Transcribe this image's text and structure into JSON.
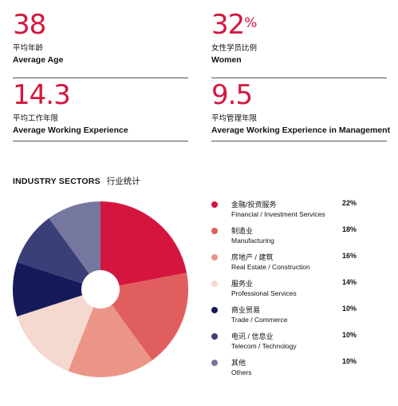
{
  "stats": [
    {
      "value": "38",
      "suffix": "",
      "zh": "平均年龄",
      "en": "Average Age"
    },
    {
      "value": "32",
      "suffix": "%",
      "zh": "女性学员比例",
      "en": "Women"
    },
    {
      "value": "14.3",
      "suffix": "",
      "zh": "平均工作年限",
      "en": "Average Working Experience"
    },
    {
      "value": "9.5",
      "suffix": "",
      "zh": "平均管理年限",
      "en": "Average Working Experience in Management"
    }
  ],
  "section": {
    "title_en": "INDUSTRY SECTORS",
    "title_zh": "行业统计"
  },
  "colors": {
    "accent": "#d4163f",
    "rule": "#555555"
  },
  "chart_data": {
    "type": "pie",
    "donut": true,
    "start": "top, clockwise",
    "categories": [
      {
        "zh": "金融/投资服务",
        "en": "Financial / Investment Services",
        "value": 22,
        "label": "22%",
        "color": "#d4163f"
      },
      {
        "zh": "制造业",
        "en": "Manufacturing",
        "value": 18,
        "label": "18%",
        "color": "#e05f5e"
      },
      {
        "zh": "房地产 / 建筑",
        "en": "Real Estate / Construction",
        "value": 16,
        "label": "16%",
        "color": "#eb9588"
      },
      {
        "zh": "服务业",
        "en": "Professional Services",
        "value": 14,
        "label": "14%",
        "color": "#f5d8d0"
      },
      {
        "zh": "商业贸易",
        "en": "Trade / Commerce",
        "value": 10,
        "label": "10%",
        "color": "#161a5b"
      },
      {
        "zh": "电讯 / 信息业",
        "en": "Telecom / Technology",
        "value": 10,
        "label": "10%",
        "color": "#3b3f78"
      },
      {
        "zh": "其他",
        "en": "Others",
        "value": 10,
        "label": "10%",
        "color": "#76779f"
      }
    ],
    "legend_position": "right"
  }
}
